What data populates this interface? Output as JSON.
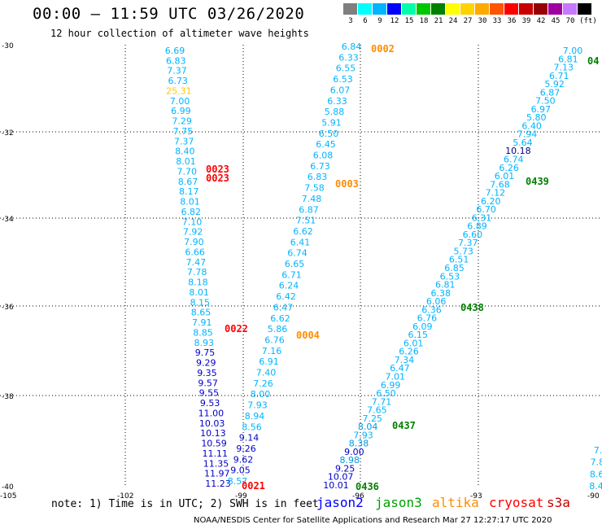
{
  "header": {
    "title": "00:00 – 11:59 UTC 03/26/2020",
    "subtitle": "12 hour collection of altimeter wave heights"
  },
  "scale": {
    "colors": [
      "#7f7f7f",
      "#00ffff",
      "#00b4ff",
      "#0000ff",
      "#00ffaa",
      "#00c800",
      "#008000",
      "#ffff00",
      "#ffd200",
      "#ffaa00",
      "#ff5500",
      "#ff0000",
      "#c80000",
      "#960000",
      "#a000a0",
      "#c878ff",
      "#000000"
    ],
    "labels": [
      "3",
      "6",
      "9",
      "12",
      "15",
      "18",
      "21",
      "24",
      "27",
      "30",
      "33",
      "36",
      "39",
      "42",
      "45",
      "70",
      "(ft)"
    ]
  },
  "map": {
    "lon_labels": [
      "-105",
      "-102",
      "-99",
      "-96",
      "-93",
      "-90"
    ],
    "lat_labels": [
      "-30",
      "-32",
      "-34",
      "-36",
      "-38",
      "-40"
    ]
  },
  "tracks": {
    "t1": [
      "6.69",
      "6.83",
      "7.37",
      "6.73",
      "25.31",
      "7.00",
      "6.99",
      "7.29",
      "7.75",
      "7.37",
      "8.40",
      "8.01",
      "7.70",
      "8.67",
      "8.17",
      "8.01",
      "6.82",
      "7.10",
      "7.92",
      "7.90",
      "6.66",
      "7.47",
      "7.78",
      "8.18",
      "8.01",
      "8.15",
      "8.65",
      "7.91",
      "8.85",
      "8.93",
      "9.75",
      "9.29",
      "9.35",
      "9.57",
      "9.55",
      "9.53",
      "11.00",
      "10.03",
      "10.13",
      "10.59",
      "11.11",
      "11.35",
      "11.97",
      "11.23"
    ],
    "t1_tail": [
      "8.57",
      "9.05",
      "9.62",
      "9.26",
      "9.14",
      "8.56",
      "8.94",
      "7.93",
      "8.00",
      "7.26",
      "7.40",
      "6.91",
      "7.16",
      "6.76",
      "5.86",
      "6.62",
      "6.47",
      "6.42",
      "6.24",
      "6.71",
      "6.65",
      "6.74",
      "6.41",
      "6.62",
      "7.51",
      "6.87",
      "7.48",
      "7.58",
      "6.83",
      "6.73",
      "6.08",
      "6.45",
      "6.50",
      "5.91",
      "5.88",
      "6.33",
      "6.07",
      "6.53",
      "6.55",
      "6.33",
      "6.84"
    ],
    "t3": [
      "10.01",
      "10.07",
      "9.25",
      "8.98",
      "9.00",
      "8.38",
      "7.93",
      "8.04",
      "7.25",
      "7.65",
      "7.71",
      "6.50",
      "6.99",
      "7.01",
      "6.47",
      "7.34",
      "6.26",
      "6.01",
      "6.15",
      "6.09",
      "6.76",
      "6.36",
      "6.06",
      "6.38",
      "6.81",
      "6.53",
      "6.85",
      "6.51",
      "5.73",
      "7.37",
      "6.60",
      "6.89",
      "6.31",
      "6.70",
      "6.20",
      "7.12",
      "7.68",
      "6.01",
      "6.26",
      "6.74",
      "10.18",
      "5.64",
      "7.94",
      "6.40",
      "5.80",
      "6.97",
      "7.50",
      "6.87",
      "5.92",
      "6.71",
      "7.13",
      "6.81",
      "7.00"
    ],
    "t4": [
      "8.4",
      "8.6",
      "7.8",
      "7."
    ]
  },
  "annotations": [
    {
      "text": "0002",
      "color": "#ff8c00"
    },
    {
      "text": "0023",
      "color": "#ff0000"
    },
    {
      "text": "0023",
      "color": "#ff0000"
    },
    {
      "text": "0003",
      "color": "#ff8c00"
    },
    {
      "text": "0022",
      "color": "#ff0000"
    },
    {
      "text": "0004",
      "color": "#ff8c00"
    },
    {
      "text": "0021",
      "color": "#ff0000"
    },
    {
      "text": "0436",
      "color": "#008000"
    },
    {
      "text": "0437",
      "color": "#008000"
    },
    {
      "text": "0438",
      "color": "#008000"
    },
    {
      "text": "0439",
      "color": "#008000"
    },
    {
      "text": "04",
      "color": "#008000"
    }
  ],
  "footer": {
    "note": "note:  1) Time is in UTC;  2) SWH is in feet",
    "sats": [
      {
        "name": "jason2",
        "color": "#0000ff"
      },
      {
        "name": "jason3",
        "color": "#00a000"
      },
      {
        "name": "altika",
        "color": "#ff8c00"
      },
      {
        "name": "cryosat",
        "color": "#ff0000"
      },
      {
        "name": "s3a",
        "color": "#c80000"
      }
    ],
    "credit": "NOAA/NESDIS Center for Satellite Applications and Research    Mar 27 12:27:17 UTC 2020"
  }
}
